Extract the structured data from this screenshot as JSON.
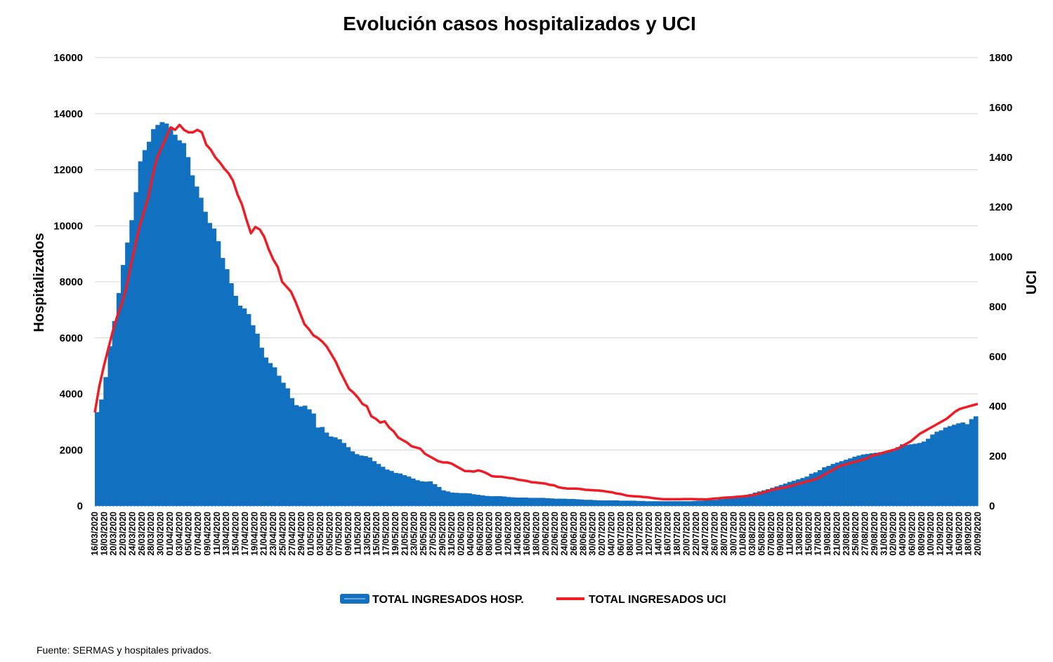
{
  "chart_data": {
    "type": "bar",
    "title": "Evolución casos hospitalizados y UCI",
    "ylabel": "Hospitalizados",
    "y2label": "UCI",
    "ylim": [
      0,
      16000
    ],
    "y2lim": [
      0,
      1800
    ],
    "yticks": [
      0,
      2000,
      4000,
      6000,
      8000,
      10000,
      12000,
      14000,
      16000
    ],
    "y2ticks": [
      0,
      200,
      400,
      600,
      800,
      1000,
      1200,
      1400,
      1600,
      1800
    ],
    "xtick_labels": [
      "16/03/2020",
      "18/03/2020",
      "20/03/2020",
      "22/03/2020",
      "24/03/2020",
      "26/03/2020",
      "28/03/2020",
      "30/03/2020",
      "01/04/2020",
      "03/04/2020",
      "05/04/2020",
      "07/04/2020",
      "09/04/2020",
      "11/04/2020",
      "13/04/2020",
      "15/04/2020",
      "17/04/2020",
      "19/04/2020",
      "21/04/2020",
      "23/04/2020",
      "25/04/2020",
      "27/04/2020",
      "29/04/2020",
      "01/05/2020",
      "03/05/2020",
      "05/05/2020",
      "07/05/2020",
      "09/05/2020",
      "11/05/2020",
      "13/05/2020",
      "15/05/2020",
      "17/05/2020",
      "19/05/2020",
      "21/05/2020",
      "23/05/2020",
      "25/05/2020",
      "27/05/2020",
      "29/05/2020",
      "31/05/2020",
      "02/06/2020",
      "04/06/2020",
      "06/06/2020",
      "08/06/2020",
      "10/06/2020",
      "12/06/2020",
      "14/06/2020",
      "16/06/2020",
      "18/06/2020",
      "20/06/2020",
      "22/06/2020",
      "24/06/2020",
      "26/06/2020",
      "28/06/2020",
      "30/06/2020",
      "02/07/2020",
      "04/07/2020",
      "06/07/2020",
      "08/07/2020",
      "10/07/2020",
      "12/07/2020",
      "14/07/2020",
      "16/07/2020",
      "18/07/2020",
      "20/07/2020",
      "22/07/2020",
      "24/07/2020",
      "26/07/2020",
      "28/07/2020",
      "30/07/2020",
      "01/08/2020",
      "03/08/2020",
      "05/08/2020",
      "07/08/2020",
      "09/08/2020",
      "11/08/2020",
      "13/08/2020",
      "15/08/2020",
      "17/08/2020",
      "19/08/2020",
      "21/08/2020",
      "23/08/2020",
      "25/08/2020",
      "27/08/2020",
      "29/08/2020",
      "31/08/2020",
      "02/09/2020",
      "04/09/2020",
      "06/09/2020",
      "08/09/2020",
      "10/09/2020",
      "12/09/2020",
      "14/09/2020",
      "16/09/2020",
      "18/09/2020",
      "20/09/2020"
    ],
    "grid": true,
    "legend_position": "bottom",
    "series": [
      {
        "name": "TOTAL INGRESADOS HOSP.",
        "kind": "bar",
        "axis": "left",
        "color": "#1170bf",
        "values": [
          3350,
          3800,
          4600,
          5700,
          6600,
          7600,
          8600,
          9400,
          10200,
          11200,
          12300,
          12700,
          13000,
          13450,
          13600,
          13700,
          13650,
          13500,
          13250,
          13050,
          12950,
          12450,
          11800,
          11400,
          11000,
          10500,
          10100,
          9900,
          9450,
          8850,
          8450,
          7950,
          7500,
          7150,
          7050,
          6850,
          6450,
          6150,
          5650,
          5300,
          5100,
          4950,
          4650,
          4400,
          4200,
          3850,
          3600,
          3550,
          3580,
          3450,
          3300,
          2800,
          2820,
          2620,
          2480,
          2450,
          2380,
          2250,
          2100,
          1950,
          1850,
          1800,
          1780,
          1730,
          1600,
          1500,
          1400,
          1300,
          1250,
          1180,
          1160,
          1100,
          1050,
          980,
          920,
          880,
          870,
          880,
          780,
          680,
          560,
          520,
          480,
          470,
          460,
          460,
          450,
          420,
          400,
          380,
          360,
          350,
          350,
          350,
          340,
          320,
          310,
          300,
          300,
          300,
          290,
          290,
          290,
          290,
          280,
          270,
          260,
          260,
          260,
          250,
          250,
          240,
          230,
          220,
          220,
          210,
          200,
          200,
          200,
          200,
          200,
          190,
          190,
          190,
          190,
          180,
          180,
          170,
          170,
          170,
          170,
          170,
          170,
          170,
          170,
          170,
          170,
          170,
          180,
          190,
          190,
          200,
          210,
          220,
          240,
          260,
          280,
          300,
          330,
          350,
          390,
          430,
          480,
          520,
          560,
          600,
          650,
          700,
          750,
          800,
          860,
          900,
          950,
          1000,
          1050,
          1150,
          1200,
          1280,
          1380,
          1430,
          1500,
          1550,
          1600,
          1650,
          1700,
          1760,
          1800,
          1840,
          1860,
          1880,
          1900,
          1920,
          1940,
          1960,
          2000,
          2100,
          2200,
          2180,
          2200,
          2220,
          2250,
          2300,
          2400,
          2550,
          2650,
          2700,
          2800,
          2850,
          2900,
          2950,
          2980,
          2920,
          3100,
          3200
        ]
      },
      {
        "name": "TOTAL INGRESADOS UCI",
        "kind": "line",
        "axis": "right",
        "color": "#ee1c25",
        "values": [
          375,
          480,
          560,
          630,
          700,
          760,
          810,
          870,
          960,
          1040,
          1120,
          1180,
          1240,
          1330,
          1400,
          1440,
          1480,
          1520,
          1510,
          1530,
          1510,
          1500,
          1500,
          1510,
          1500,
          1450,
          1430,
          1400,
          1380,
          1355,
          1335,
          1305,
          1250,
          1210,
          1150,
          1095,
          1120,
          1110,
          1080,
          1030,
          990,
          960,
          900,
          880,
          860,
          820,
          775,
          730,
          710,
          685,
          675,
          660,
          640,
          610,
          580,
          540,
          505,
          470,
          455,
          435,
          410,
          400,
          360,
          350,
          335,
          340,
          315,
          300,
          275,
          265,
          255,
          240,
          235,
          230,
          210,
          200,
          190,
          180,
          175,
          175,
          170,
          160,
          150,
          140,
          140,
          138,
          143,
          138,
          130,
          120,
          118,
          118,
          115,
          112,
          110,
          105,
          103,
          100,
          95,
          94,
          92,
          90,
          85,
          83,
          75,
          72,
          70,
          70,
          70,
          68,
          65,
          64,
          63,
          62,
          60,
          57,
          55,
          50,
          48,
          43,
          40,
          39,
          38,
          36,
          35,
          32,
          30,
          28,
          27,
          27,
          27,
          27,
          28,
          28,
          28,
          27,
          27,
          26,
          28,
          30,
          31,
          33,
          34,
          35,
          37,
          38,
          40,
          42,
          45,
          50,
          55,
          60,
          65,
          70,
          72,
          75,
          80,
          85,
          90,
          95,
          100,
          105,
          110,
          120,
          130,
          140,
          150,
          160,
          165,
          170,
          175,
          180,
          185,
          190,
          200,
          205,
          210,
          215,
          220,
          225,
          230,
          240,
          250,
          260,
          275,
          290,
          300,
          310,
          320,
          330,
          340,
          350,
          365,
          380,
          390,
          395,
          400,
          405,
          410
        ]
      }
    ]
  },
  "source_note": "Fuente: SERMAS y hospitales privados."
}
